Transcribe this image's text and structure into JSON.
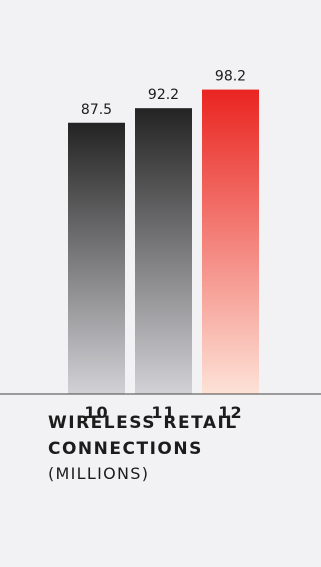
{
  "chart_data": {
    "type": "bar",
    "categories": [
      "10",
      "11",
      "12"
    ],
    "values": [
      87.5,
      92.2,
      98.2
    ],
    "value_labels": [
      "87.5",
      "92.2",
      "98.2"
    ],
    "title": "WIRELESS RETAIL CONNECTIONS",
    "title_lines": [
      "WIRELESS RETAIL",
      "CONNECTIONS"
    ],
    "subtitle": "(MILLIONS)",
    "ylim": [
      0,
      100
    ],
    "grid": false,
    "legend": "none",
    "colors": {
      "dark_bar_top": "#232323",
      "dark_bar_bottom": "#d2d2d6",
      "highlight_bar_top": "#ea2420",
      "highlight_bar_bottom": "#fde2d7",
      "baseline": "#444444",
      "text": "#1c1c1c"
    },
    "highlight_index": 2
  }
}
